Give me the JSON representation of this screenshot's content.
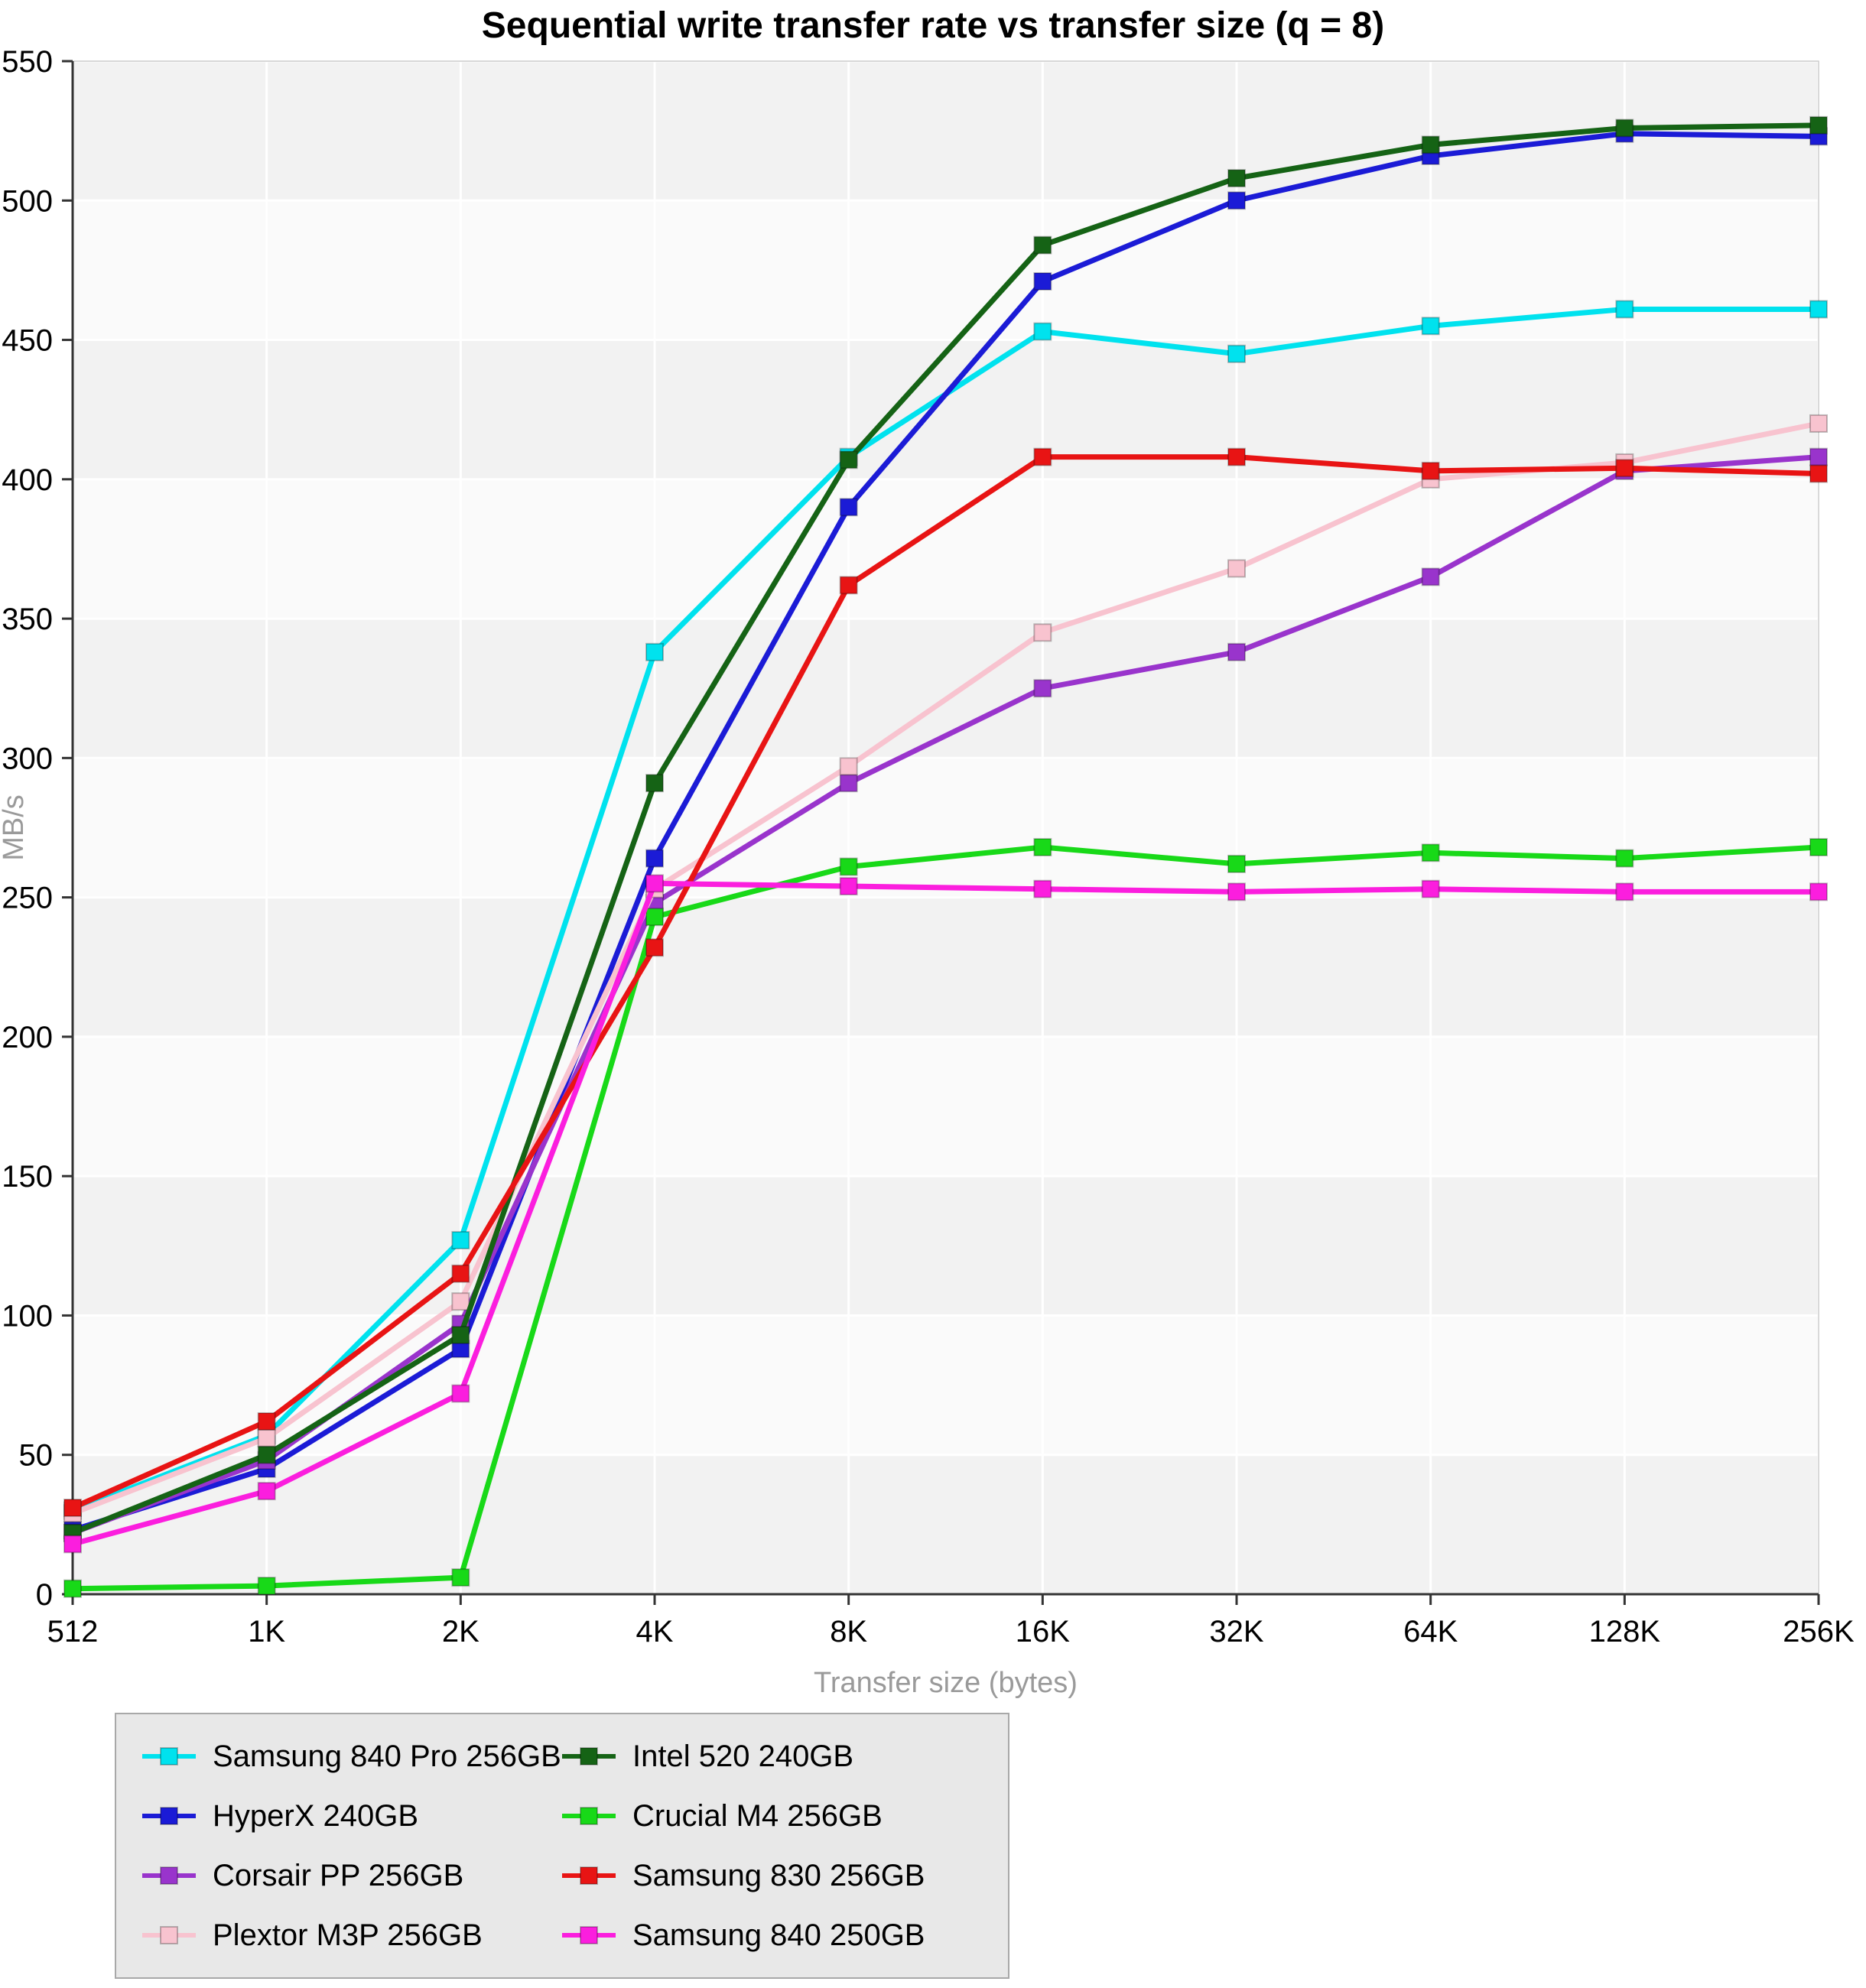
{
  "title": "Sequential write transfer rate vs transfer size (q = 8)",
  "chart_data": {
    "type": "line",
    "x_categories": [
      "512",
      "1K",
      "2K",
      "4K",
      "8K",
      "16K",
      "32K",
      "64K",
      "128K",
      "256K"
    ],
    "xlabel": "Transfer size (bytes)",
    "ylabel": "MB/s",
    "ylim": [
      0,
      550
    ],
    "ytick_step": 50,
    "grid": true,
    "legend_position": "bottom",
    "series": [
      {
        "name": "Samsung 840 Pro 256GB",
        "color": "#00e2ee",
        "values": [
          30,
          57,
          127,
          338,
          408,
          453,
          445,
          455,
          461,
          461
        ]
      },
      {
        "name": "HyperX 240GB",
        "color": "#1b1bd6",
        "values": [
          23,
          45,
          88,
          264,
          390,
          471,
          500,
          516,
          524,
          523
        ]
      },
      {
        "name": "Corsair PP 256GB",
        "color": "#9934cc",
        "values": [
          22,
          48,
          97,
          248,
          291,
          325,
          338,
          365,
          403,
          408
        ]
      },
      {
        "name": "Plextor M3P 256GB",
        "color": "#f8c3cf",
        "values": [
          29,
          56,
          105,
          253,
          297,
          345,
          368,
          400,
          406,
          420
        ]
      },
      {
        "name": "Intel 520 240GB",
        "color": "#156315",
        "values": [
          22,
          50,
          93,
          291,
          407,
          484,
          508,
          520,
          526,
          527
        ]
      },
      {
        "name": "Crucial M4 256GB",
        "color": "#18d918",
        "values": [
          2,
          3,
          6,
          243,
          261,
          268,
          262,
          266,
          264,
          268
        ]
      },
      {
        "name": "Samsung 830 256GB",
        "color": "#e81414",
        "values": [
          31,
          62,
          115,
          232,
          362,
          408,
          408,
          403,
          404,
          402
        ]
      },
      {
        "name": "Samsung 840 250GB",
        "color": "#fb1ede",
        "values": [
          18,
          37,
          72,
          255,
          254,
          253,
          252,
          253,
          252,
          252
        ]
      }
    ]
  }
}
